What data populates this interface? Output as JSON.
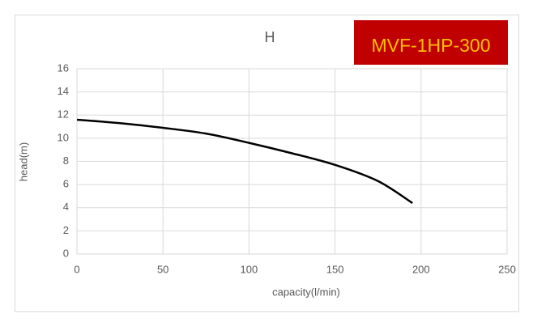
{
  "chart_data": {
    "type": "line",
    "title": "H",
    "annotation": "MVF-1HP-300",
    "annotation_color": "#c00000",
    "annotation_text_color": "#ffc000",
    "x_label": "capacity(l/min)",
    "y_label": "head(m)",
    "x": [
      0,
      25,
      50,
      75,
      100,
      125,
      150,
      175,
      195
    ],
    "values": [
      11.6,
      11.3,
      10.9,
      10.4,
      9.6,
      8.7,
      7.7,
      6.3,
      4.4
    ],
    "color": "#000000",
    "xlim": [
      0,
      250
    ],
    "xticks": [
      0,
      50,
      100,
      150,
      200,
      250
    ],
    "ylim": [
      0,
      16
    ],
    "yticks": [
      0,
      2,
      4,
      6,
      8,
      10,
      12,
      14,
      16
    ],
    "grid": true
  }
}
